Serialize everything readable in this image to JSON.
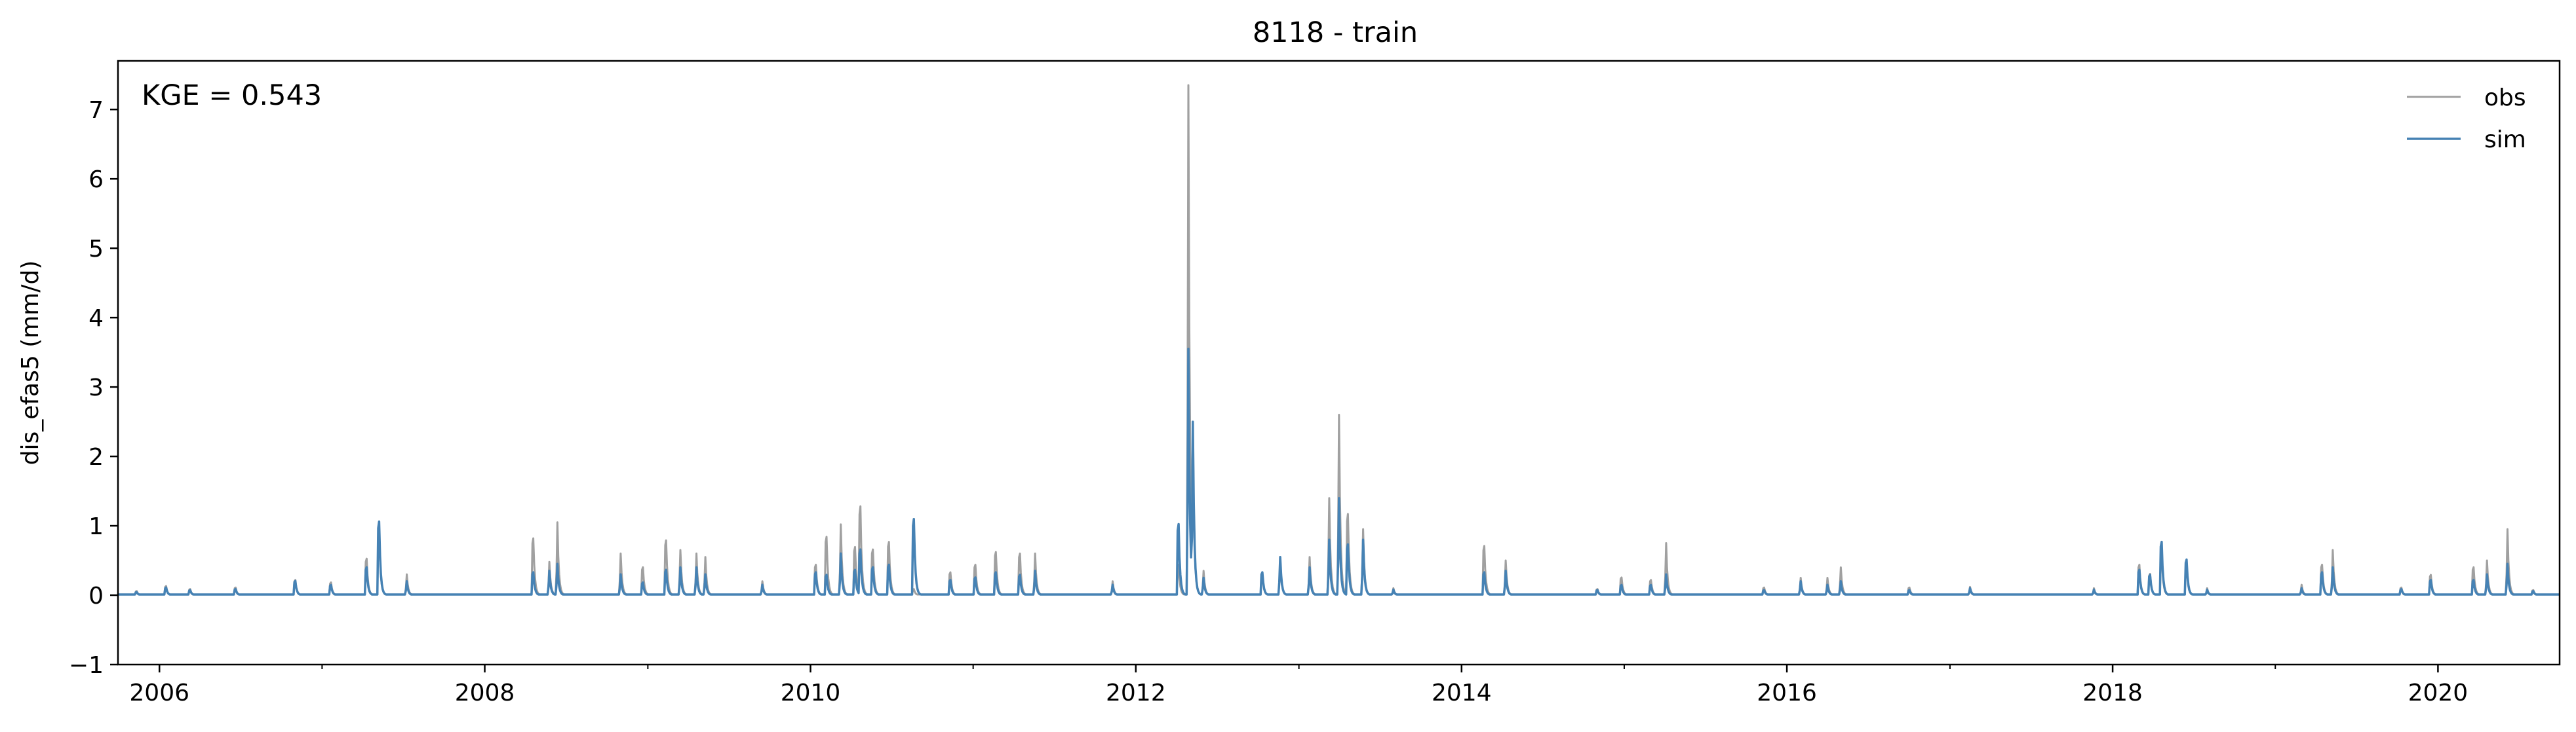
{
  "chart_data": {
    "type": "line",
    "title": "8118 - train",
    "xlabel": "",
    "ylabel": "dis_efas5 (mm/d)",
    "annotation": "KGE = 0.543",
    "xlim": [
      "2005-09-30",
      "2020-09-30"
    ],
    "ylim": [
      -1,
      7.7
    ],
    "x_ticks": [
      "2006",
      "2008",
      "2010",
      "2012",
      "2014",
      "2016",
      "2018",
      "2020"
    ],
    "y_ticks": [
      "−1",
      "0",
      "1",
      "2",
      "3",
      "4",
      "5",
      "6",
      "7"
    ],
    "legend": {
      "position": "top-right",
      "entries": [
        "obs",
        "sim"
      ]
    },
    "grid": false,
    "colors": {
      "obs": "#a0a0a0",
      "sim": "#4682b4"
    },
    "baseflow": {
      "obs": 0.01,
      "sim": 0.01
    },
    "series": [
      {
        "name": "obs",
        "peaks": [
          [
            "2005-11-10",
            0.08
          ],
          [
            "2006-01-15",
            0.18
          ],
          [
            "2006-03-10",
            0.12
          ],
          [
            "2006-06-20",
            0.15
          ],
          [
            "2006-11-01",
            0.3
          ],
          [
            "2007-01-20",
            0.25
          ],
          [
            "2007-04-10",
            0.72
          ],
          [
            "2007-05-08",
            1.3
          ],
          [
            "2007-07-10",
            0.3
          ],
          [
            "2008-04-18",
            1.12
          ],
          [
            "2008-05-25",
            0.48
          ],
          [
            "2008-06-12",
            1.05
          ],
          [
            "2008-11-01",
            0.6
          ],
          [
            "2008-12-20",
            0.55
          ],
          [
            "2009-02-10",
            1.08
          ],
          [
            "2009-03-15",
            0.65
          ],
          [
            "2009-04-20",
            0.6
          ],
          [
            "2009-05-10",
            0.55
          ],
          [
            "2009-09-15",
            0.2
          ],
          [
            "2010-01-12",
            0.6
          ],
          [
            "2010-02-05",
            1.15
          ],
          [
            "2010-03-10",
            1.02
          ],
          [
            "2010-04-10",
            0.95
          ],
          [
            "2010-04-22",
            1.75
          ],
          [
            "2010-05-20",
            0.9
          ],
          [
            "2010-06-25",
            1.05
          ],
          [
            "2010-08-20",
            0.12
          ],
          [
            "2010-11-10",
            0.45
          ],
          [
            "2011-01-05",
            0.6
          ],
          [
            "2011-02-20",
            0.85
          ],
          [
            "2011-04-15",
            0.82
          ],
          [
            "2011-05-20",
            0.6
          ],
          [
            "2011-11-10",
            0.2
          ],
          [
            "2012-04-05",
            0.6
          ],
          [
            "2012-04-28",
            7.35
          ],
          [
            "2012-05-08",
            2.45
          ],
          [
            "2012-06-01",
            0.35
          ],
          [
            "2012-10-10",
            0.4
          ],
          [
            "2012-11-20",
            0.5
          ],
          [
            "2013-01-25",
            0.55
          ],
          [
            "2013-03-10",
            1.4
          ],
          [
            "2013-04-01",
            2.6
          ],
          [
            "2013-04-20",
            1.6
          ],
          [
            "2013-05-25",
            0.95
          ],
          [
            "2013-08-01",
            0.1
          ],
          [
            "2014-02-20",
            0.97
          ],
          [
            "2014-04-10",
            0.5
          ],
          [
            "2014-11-01",
            0.12
          ],
          [
            "2014-12-25",
            0.35
          ],
          [
            "2015-03-01",
            0.3
          ],
          [
            "2015-04-05",
            0.75
          ],
          [
            "2015-11-10",
            0.15
          ],
          [
            "2016-02-01",
            0.25
          ],
          [
            "2016-04-01",
            0.25
          ],
          [
            "2016-05-01",
            0.4
          ],
          [
            "2016-10-01",
            0.15
          ],
          [
            "2017-02-15",
            0.12
          ],
          [
            "2017-11-20",
            0.1
          ],
          [
            "2018-03-01",
            0.6
          ],
          [
            "2018-03-25",
            0.42
          ],
          [
            "2018-04-20",
            0.85
          ],
          [
            "2018-06-15",
            0.6
          ],
          [
            "2018-08-01",
            0.1
          ],
          [
            "2019-03-01",
            0.15
          ],
          [
            "2019-04-15",
            0.6
          ],
          [
            "2019-05-10",
            0.65
          ],
          [
            "2019-10-10",
            0.15
          ],
          [
            "2019-12-15",
            0.4
          ],
          [
            "2020-03-20",
            0.55
          ],
          [
            "2020-04-20",
            0.5
          ],
          [
            "2020-06-05",
            0.95
          ],
          [
            "2020-08-01",
            0.1
          ]
        ]
      },
      {
        "name": "sim",
        "peaks": [
          [
            "2005-11-10",
            0.06
          ],
          [
            "2006-01-15",
            0.15
          ],
          [
            "2006-03-10",
            0.1
          ],
          [
            "2006-06-20",
            0.12
          ],
          [
            "2006-11-01",
            0.28
          ],
          [
            "2007-01-20",
            0.2
          ],
          [
            "2007-04-10",
            0.55
          ],
          [
            "2007-05-08",
            1.45
          ],
          [
            "2007-07-10",
            0.2
          ],
          [
            "2008-04-18",
            0.45
          ],
          [
            "2008-05-25",
            0.35
          ],
          [
            "2008-06-12",
            0.45
          ],
          [
            "2008-11-01",
            0.3
          ],
          [
            "2008-12-20",
            0.25
          ],
          [
            "2009-02-10",
            0.5
          ],
          [
            "2009-03-15",
            0.4
          ],
          [
            "2009-04-20",
            0.4
          ],
          [
            "2009-05-10",
            0.3
          ],
          [
            "2009-09-15",
            0.15
          ],
          [
            "2010-01-12",
            0.45
          ],
          [
            "2010-02-05",
            0.4
          ],
          [
            "2010-03-10",
            0.6
          ],
          [
            "2010-04-10",
            0.5
          ],
          [
            "2010-04-22",
            0.9
          ],
          [
            "2010-05-20",
            0.55
          ],
          [
            "2010-06-25",
            0.6
          ],
          [
            "2010-08-20",
            1.5
          ],
          [
            "2010-11-10",
            0.3
          ],
          [
            "2011-01-05",
            0.35
          ],
          [
            "2011-02-20",
            0.45
          ],
          [
            "2011-04-15",
            0.4
          ],
          [
            "2011-05-20",
            0.35
          ],
          [
            "2011-11-10",
            0.15
          ],
          [
            "2012-04-05",
            1.4
          ],
          [
            "2012-04-28",
            3.55
          ],
          [
            "2012-05-08",
            2.5
          ],
          [
            "2012-06-01",
            0.25
          ],
          [
            "2012-10-10",
            0.45
          ],
          [
            "2012-11-20",
            0.55
          ],
          [
            "2013-01-25",
            0.4
          ],
          [
            "2013-03-10",
            0.8
          ],
          [
            "2013-04-01",
            1.4
          ],
          [
            "2013-04-20",
            1.0
          ],
          [
            "2013-05-25",
            0.8
          ],
          [
            "2013-08-01",
            0.08
          ],
          [
            "2014-02-20",
            0.45
          ],
          [
            "2014-04-10",
            0.35
          ],
          [
            "2014-11-01",
            0.1
          ],
          [
            "2014-12-25",
            0.2
          ],
          [
            "2015-03-01",
            0.2
          ],
          [
            "2015-04-05",
            0.3
          ],
          [
            "2015-11-10",
            0.1
          ],
          [
            "2016-02-01",
            0.2
          ],
          [
            "2016-04-01",
            0.15
          ],
          [
            "2016-05-01",
            0.2
          ],
          [
            "2016-10-01",
            0.1
          ],
          [
            "2017-02-15",
            0.1
          ],
          [
            "2017-11-20",
            0.08
          ],
          [
            "2018-03-01",
            0.5
          ],
          [
            "2018-03-25",
            0.4
          ],
          [
            "2018-04-20",
            1.05
          ],
          [
            "2018-06-15",
            0.7
          ],
          [
            "2018-08-01",
            0.08
          ],
          [
            "2019-03-01",
            0.1
          ],
          [
            "2019-04-15",
            0.45
          ],
          [
            "2019-05-10",
            0.4
          ],
          [
            "2019-10-10",
            0.12
          ],
          [
            "2019-12-15",
            0.3
          ],
          [
            "2020-03-20",
            0.3
          ],
          [
            "2020-04-20",
            0.3
          ],
          [
            "2020-06-05",
            0.45
          ],
          [
            "2020-08-01",
            0.08
          ]
        ]
      }
    ]
  }
}
